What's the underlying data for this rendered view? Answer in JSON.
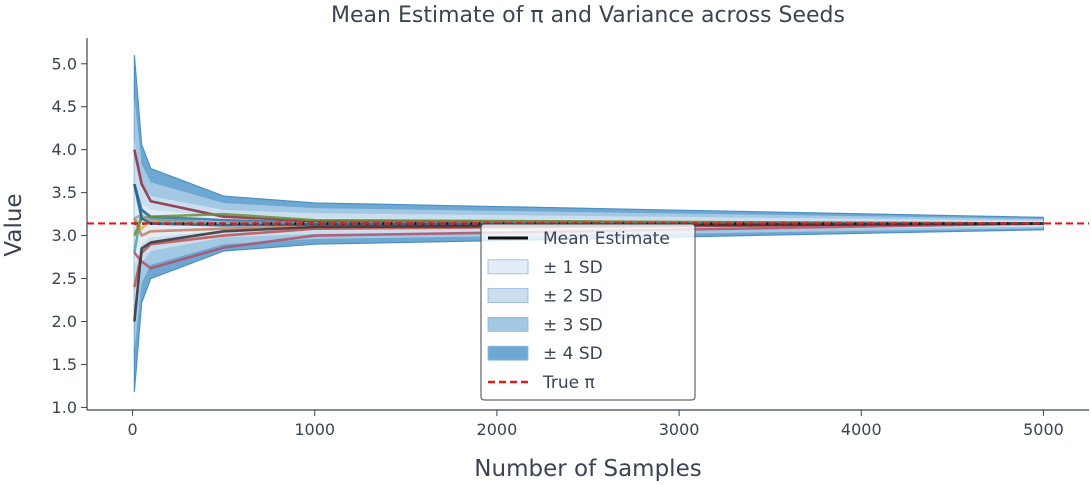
{
  "chart_data": {
    "type": "line",
    "title": "Mean Estimate of π and Variance across Seeds",
    "xlabel": "Number of Samples",
    "ylabel": "Value",
    "xlim": [
      -250,
      5250
    ],
    "ylim": [
      0.97,
      5.3
    ],
    "xticks": [
      0,
      1000,
      2000,
      3000,
      4000,
      5000
    ],
    "xtick_labels": [
      "0",
      "1000",
      "2000",
      "3000",
      "4000",
      "5000"
    ],
    "yticks": [
      1.0,
      1.5,
      2.0,
      2.5,
      3.0,
      3.5,
      4.0,
      4.5,
      5.0
    ],
    "ytick_labels": [
      "1.0",
      "1.5",
      "2.0",
      "2.5",
      "3.0",
      "3.5",
      "4.0",
      "4.5",
      "5.0"
    ],
    "grid": false,
    "legend_position": "bottom-center",
    "x": [
      10,
      50,
      100,
      500,
      1000,
      5000
    ],
    "mean": [
      3.14,
      3.14,
      3.14,
      3.14,
      3.14,
      3.14
    ],
    "sd": [
      0.49,
      0.23,
      0.16,
      0.08,
      0.06,
      0.018
    ],
    "bands": [
      {
        "label": "± 1 SD",
        "k": 1,
        "color": "#e3edf6"
      },
      {
        "label": "± 2 SD",
        "k": 2,
        "color": "#cadeee"
      },
      {
        "label": "± 3 SD",
        "k": 3,
        "color": "#a2c8e3"
      },
      {
        "label": "± 4 SD",
        "k": 4,
        "color": "#6ea8d2"
      }
    ],
    "series": [
      {
        "color": "#e0b040",
        "values": [
          3.2,
          3.08,
          3.18,
          3.12,
          3.14,
          3.14
        ]
      },
      {
        "color": "#4fa0a0",
        "values": [
          2.8,
          3.3,
          3.2,
          3.14,
          3.13,
          3.14
        ]
      },
      {
        "color": "#2f6fa8",
        "values": [
          3.6,
          3.3,
          3.22,
          3.18,
          3.15,
          3.14
        ]
      },
      {
        "color": "#8a2a3a",
        "values": [
          4.0,
          3.6,
          3.4,
          3.22,
          3.17,
          3.14
        ]
      },
      {
        "color": "#c0504d",
        "values": [
          2.4,
          2.8,
          2.9,
          3.0,
          3.08,
          3.14
        ]
      },
      {
        "color": "#b05068",
        "values": [
          2.8,
          2.7,
          2.62,
          2.86,
          3.0,
          3.14
        ]
      },
      {
        "color": "#c87a60",
        "values": [
          3.2,
          3.0,
          3.05,
          3.08,
          3.11,
          3.14
        ]
      },
      {
        "color": "#6b8e3a",
        "values": [
          3.0,
          3.2,
          3.22,
          3.25,
          3.18,
          3.14
        ]
      },
      {
        "color": "#9aa0a6",
        "values": [
          3.2,
          3.24,
          3.16,
          3.15,
          3.14,
          3.14
        ]
      },
      {
        "color": "#1e5f8c",
        "values": [
          3.6,
          3.2,
          3.14,
          3.12,
          3.13,
          3.14
        ]
      },
      {
        "color": "#333333",
        "values": [
          2.0,
          2.85,
          2.92,
          3.05,
          3.1,
          3.14
        ]
      }
    ],
    "mean_line_color": "#111111",
    "true_pi": 3.14159,
    "true_pi_color": "#dd1c1c",
    "legend": [
      {
        "kind": "line",
        "label": "Mean Estimate",
        "color": "#111111"
      },
      {
        "kind": "patch",
        "label": "± 1 SD",
        "color": "#e3edf6"
      },
      {
        "kind": "patch",
        "label": "± 2 SD",
        "color": "#cadeee"
      },
      {
        "kind": "patch",
        "label": "± 3 SD",
        "color": "#a2c8e3"
      },
      {
        "kind": "patch",
        "label": "± 4 SD",
        "color": "#6ea8d2"
      },
      {
        "kind": "dashed",
        "label": "True π",
        "color": "#dd1c1c"
      }
    ]
  }
}
